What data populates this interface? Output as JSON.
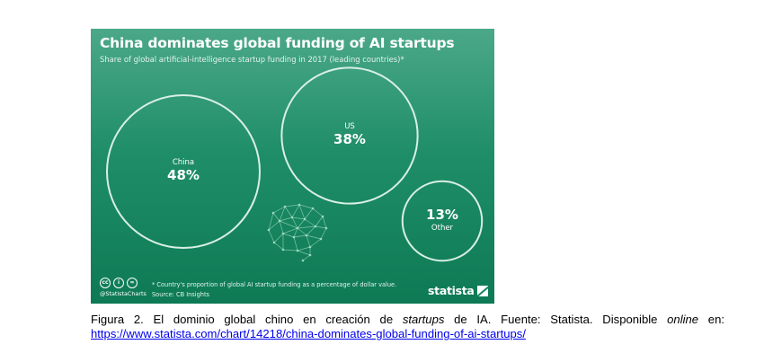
{
  "chart_data": {
    "type": "bubble",
    "title": "China dominates global funding of AI startups",
    "subtitle": "Share of global artificial-intelligence startup funding in 2017 (leading countries)*",
    "categories": [
      "China",
      "US",
      "Other"
    ],
    "values": [
      48,
      38,
      13
    ],
    "value_labels": [
      "48%",
      "38%",
      "13%"
    ],
    "unit": "%",
    "colors": {
      "background_top": "#4ba889",
      "background_bottom": "#0e7a55",
      "bubble_stroke": "#d8efe5",
      "text": "#ffffff"
    },
    "footnote": "* Country's proportion of global AI startup funding as a percentage of dollar value.",
    "source": "Source: CB Insights",
    "handle": "@StatistaCharts",
    "brand": "statista",
    "decorations": [
      "brain-network-icon",
      "creative-commons-icon",
      "attribution-icon",
      "no-derivatives-icon"
    ]
  },
  "caption": {
    "prefix": "Figura 2. El dominio global chino en creación de ",
    "emph1": "startups",
    "middle": " de IA. Fuente: Statista. Disponible ",
    "emph2": "online",
    "suffix": " en:",
    "link": "https://www.statista.com/chart/14218/china-dominates-global-funding-of-ai-startups/"
  },
  "icons": {
    "cc": "cc",
    "by": "i",
    "nd": "="
  }
}
